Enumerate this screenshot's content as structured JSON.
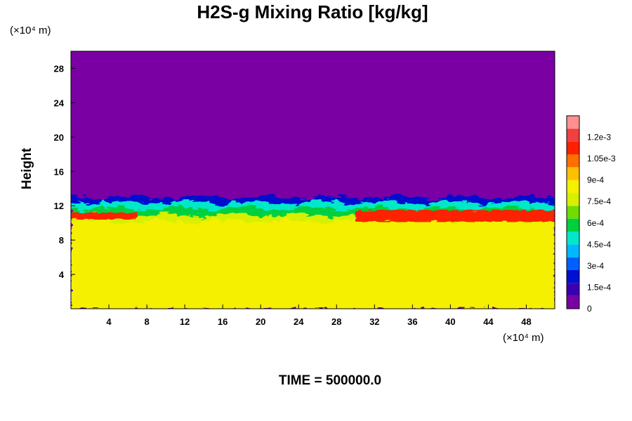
{
  "chart_data": {
    "type": "heatmap",
    "title": "H2S-g Mixing Ratio [kg/kg]",
    "xlabel": "",
    "ylabel": "Height",
    "x_unit": "(×10⁴ m)",
    "y_unit": "(×10⁴ m)",
    "xlim": [
      0,
      51
    ],
    "ylim": [
      0,
      30
    ],
    "x_ticks": [
      4,
      8,
      12,
      16,
      20,
      24,
      28,
      32,
      36,
      40,
      44,
      48
    ],
    "y_ticks": [
      4,
      8,
      12,
      16,
      20,
      24,
      28
    ],
    "colorbar": {
      "min": 0,
      "max": 0.00135,
      "tick_values": [
        0,
        0.00015,
        0.0003,
        0.00045,
        0.0006,
        0.00075,
        0.0009,
        0.00105,
        0.0012
      ],
      "tick_labels": [
        "0",
        "1.5e-4",
        "3e-4",
        "4.5e-4",
        "6e-4",
        "7.5e-4",
        "9e-4",
        "1.05e-3",
        "1.2e-3"
      ],
      "colors": [
        "#7a00a3",
        "#3a00b0",
        "#0010d0",
        "#0060ff",
        "#00b8ff",
        "#00e8c8",
        "#00d040",
        "#70dc00",
        "#d8f000",
        "#f4f000",
        "#ffc000",
        "#ff7000",
        "#ff2000",
        "#f04040",
        "#ff9090"
      ]
    },
    "field_summary": {
      "lower_region_value": 0.00087,
      "upper_region_value": 0,
      "transition_height_range": [
        10,
        14
      ],
      "high_value_band": {
        "x_range": [
          30,
          51
        ],
        "height": 10.8,
        "value": 0.00115
      }
    },
    "annotation": "TIME = 500000.0"
  }
}
